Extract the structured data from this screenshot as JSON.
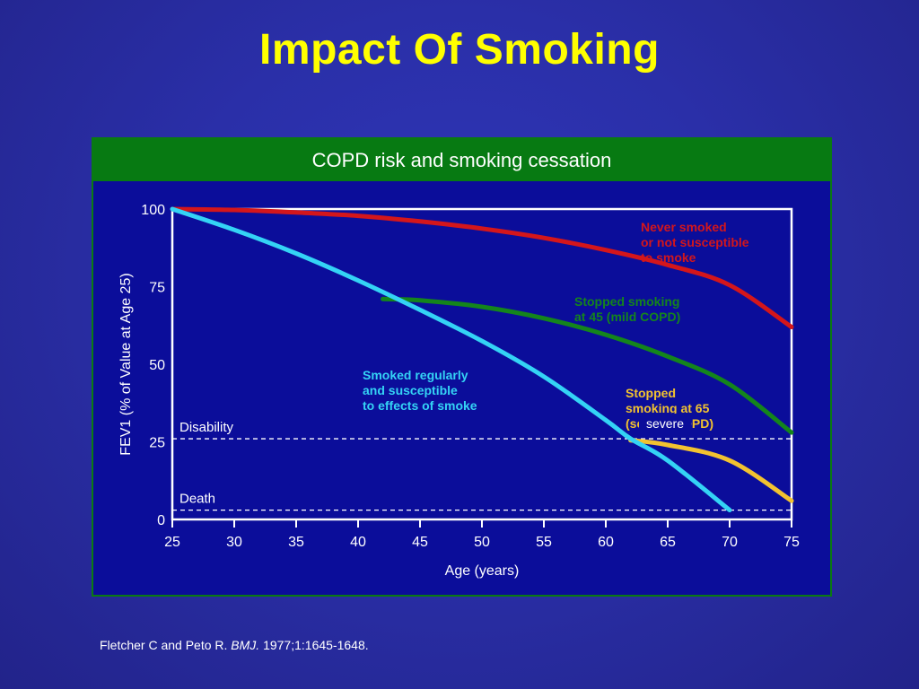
{
  "slide": {
    "title": "Impact Of Smoking",
    "citation": {
      "authors": "Fletcher C and Peto R.",
      "journal": "BMJ.",
      "details": "1977;1:1645-1648."
    }
  },
  "colors": {
    "background": "#2a2fa8",
    "title": "#ffff00",
    "figure_header": "#077a12",
    "plot_bg": "#0b0d9a",
    "never_smoked": "#d4161b",
    "stopped_45": "#14851c",
    "stopped_65": "#f2c230",
    "smoked": "#34d3f5",
    "text": "#ffffff"
  },
  "chart_data": {
    "type": "line",
    "title": "COPD risk and smoking cessation",
    "xlabel": "Age (years)",
    "ylabel": "FEV1 (% of Value at Age 25)",
    "xlim": [
      25,
      75
    ],
    "ylim": [
      0,
      100
    ],
    "xticks": [
      25,
      30,
      35,
      40,
      45,
      50,
      55,
      60,
      65,
      70,
      75
    ],
    "yticks": [
      0,
      25,
      50,
      75,
      100
    ],
    "grid": false,
    "reference_lines": [
      {
        "label": "Disability",
        "y": 26
      },
      {
        "label": "Death",
        "y": 3
      }
    ],
    "series": [
      {
        "key": "never",
        "labelLines": [
          "Never smoked",
          "or not susceptible",
          "to smoke"
        ],
        "color": "#d4161b",
        "x": [
          25,
          30,
          35,
          40,
          45,
          50,
          55,
          60,
          65,
          70,
          75
        ],
        "y": [
          100,
          99.7,
          98.9,
          97.8,
          96.0,
          93.7,
          90.7,
          86.8,
          82.0,
          75.5,
          62
        ]
      },
      {
        "key": "stopped45",
        "labelLines": [
          "Stopped smoking",
          "at 45 (mild COPD)"
        ],
        "color": "#14851c",
        "x": [
          42,
          45,
          50,
          55,
          60,
          65,
          70,
          75
        ],
        "y": [
          71,
          70.6,
          68.5,
          64.8,
          59.5,
          52.5,
          43.5,
          28
        ]
      },
      {
        "key": "stopped65",
        "labelLines": [
          "Stopped",
          "smoking at 65",
          "(severe COPD)"
        ],
        "overlayLabel": "severe",
        "color": "#f2c230",
        "x": [
          62,
          65,
          70,
          75
        ],
        "y": [
          25.5,
          24,
          19,
          6
        ]
      },
      {
        "key": "smoked",
        "labelLines": [
          "Smoked regularly",
          "and susceptible",
          "to effects of smoke"
        ],
        "color": "#34d3f5",
        "x": [
          25,
          30,
          35,
          40,
          45,
          50,
          55,
          60,
          62,
          65,
          70
        ],
        "y": [
          100,
          93.3,
          85.7,
          77.0,
          67.5,
          57.5,
          46.0,
          32.0,
          26.0,
          19.0,
          3
        ]
      }
    ]
  }
}
